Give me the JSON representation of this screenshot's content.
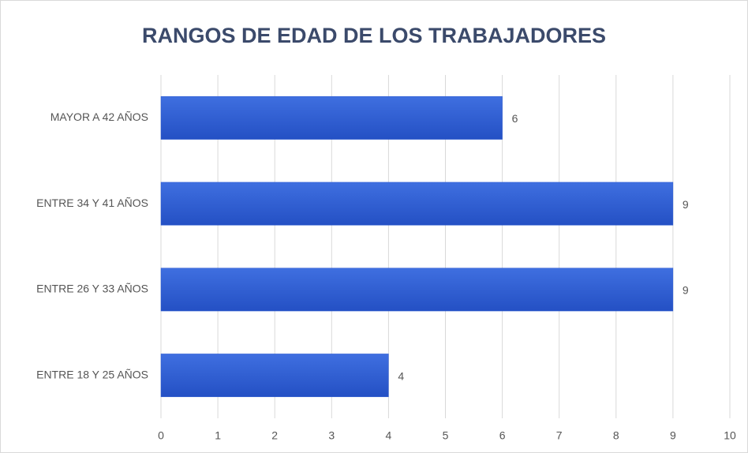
{
  "chart_data": {
    "type": "barh",
    "title": "RANGOS DE EDAD DE LOS TRABAJADORES",
    "categories": [
      "ENTRE 18 Y 25 AÑOS",
      "ENTRE 26 Y 33 AÑOS",
      "ENTRE 34 Y 41 AÑOS",
      "MAYOR A 42 AÑOS"
    ],
    "values": [
      4,
      9,
      9,
      6
    ],
    "color": "#2d5bd0",
    "xlim": [
      0,
      10
    ],
    "xticks": [
      0,
      1,
      2,
      3,
      4,
      5,
      6,
      7,
      8,
      9,
      10
    ],
    "grid": true
  }
}
